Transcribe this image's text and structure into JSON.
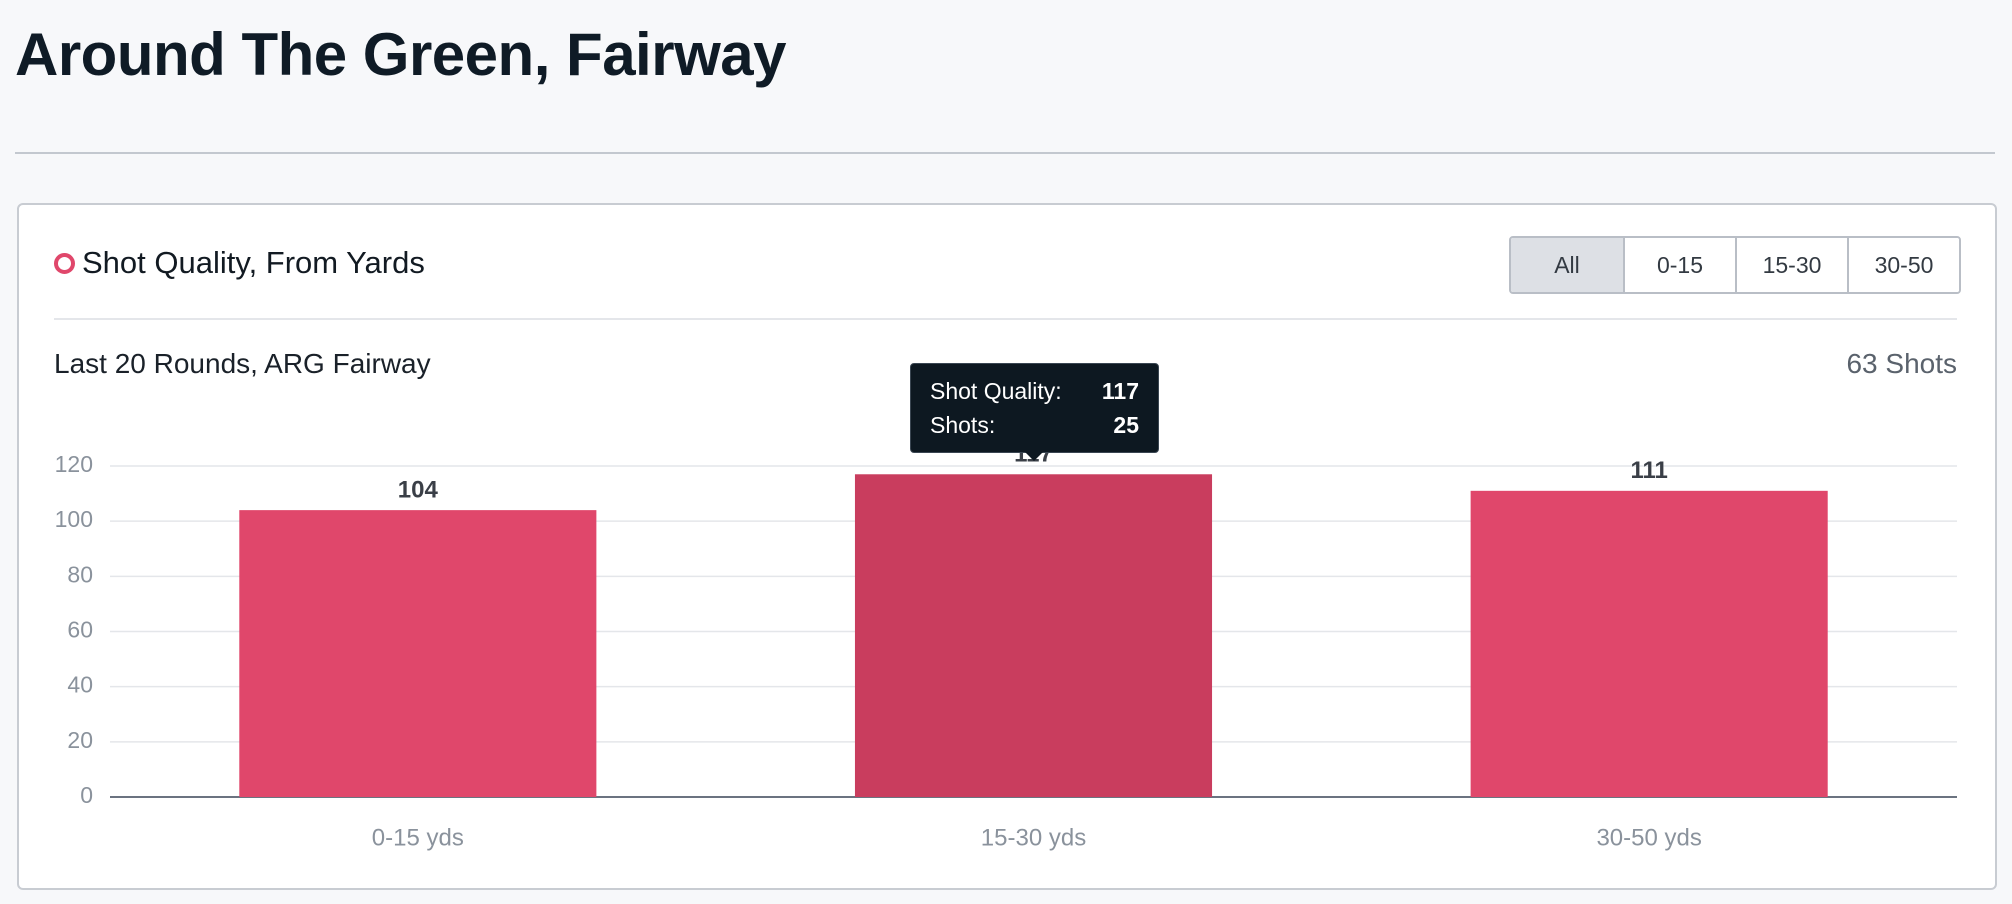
{
  "header": {
    "title": "Around The Green, Fairway"
  },
  "card": {
    "title": "Shot Quality, From Yards",
    "filters": [
      "All",
      "0-15",
      "15-30",
      "30-50"
    ],
    "active_filter": 0,
    "subtitle": "Last 20 Rounds, ARG Fairway",
    "shot_count": "63 Shots"
  },
  "chart_data": {
    "type": "bar",
    "categories": [
      "0-15 yds",
      "15-30 yds",
      "30-50 yds"
    ],
    "values": [
      104,
      117,
      111
    ],
    "colors": [
      "#e0476b",
      "#c93d5e",
      "#e0476b"
    ],
    "ylim": [
      0,
      120
    ],
    "yticks": [
      0,
      20,
      40,
      60,
      80,
      100,
      120
    ],
    "grid": true
  },
  "tooltip": {
    "rows": [
      {
        "label": "Shot Quality:",
        "value": 117
      },
      {
        "label": "Shots:",
        "value": 25
      }
    ]
  }
}
